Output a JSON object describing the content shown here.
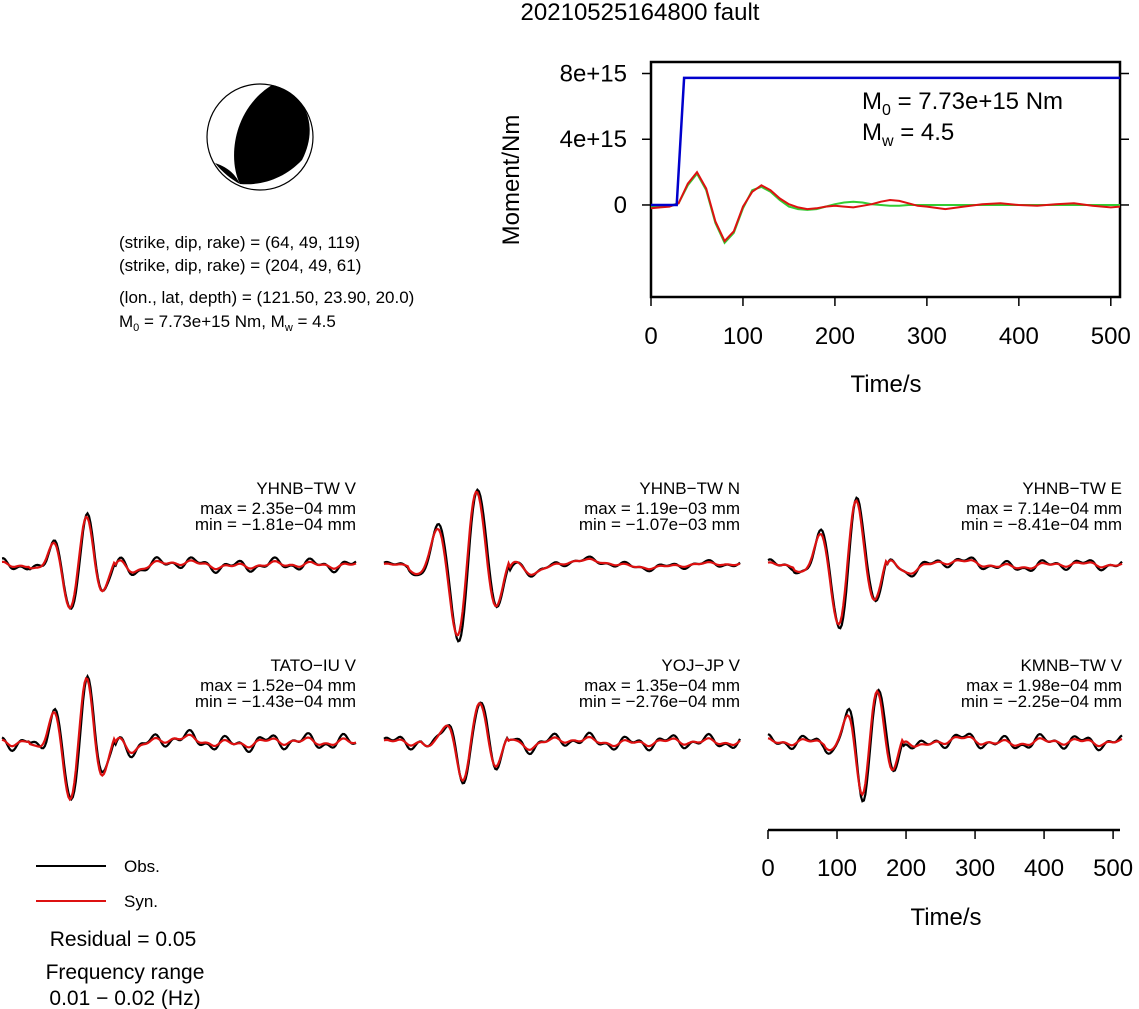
{
  "title": "20210525164800 fault",
  "focal_text": {
    "line1": "(strike, dip, rake) = (64, 49, 119)",
    "line2": "(strike, dip, rake) = (204, 49, 61)",
    "line3": "(lon., lat, depth) = (121.50, 23.90, 20.0)",
    "line4_m": "M",
    "line4_sub": "0",
    "line4_rest": " = 7.73e+15 Nm, M",
    "line4_sub2": "w",
    "line4_end": " = 4.5"
  },
  "moment_annotation": {
    "m0_prefix": "M",
    "m0_sub": "0",
    "m0_value": " = 7.73e+15 Nm",
    "mw_prefix": "M",
    "mw_sub": "w",
    "mw_value": " = 4.5"
  },
  "legend": {
    "obs_label": "Obs.",
    "syn_label": "Syn.",
    "residual": "Residual = 0.05",
    "freq_title": "Frequency range",
    "freq_range": "0.01 − 0.02 (Hz)"
  },
  "colors": {
    "moment": "#0000cc",
    "observed": "#000000",
    "synthetic": "#dd1111",
    "stf_green": "#33cc33",
    "stf_red": "#dd1111",
    "beachball_fill": "#000000"
  },
  "chart_data": [
    {
      "type": "line",
      "title": "",
      "xlabel": "Time/s",
      "ylabel": "Moment/Nm",
      "xlim": [
        0,
        510
      ],
      "ylim": [
        -5600000000000000.0,
        8700000000000000.0
      ],
      "xticks": [
        "0",
        "100",
        "200",
        "300",
        "400",
        "500"
      ],
      "yticks": [
        "0",
        "4e+15",
        "8e+15"
      ],
      "series": [
        {
          "name": "moment",
          "x": [
            0,
            28,
            36,
            510
          ],
          "y": [
            0,
            0,
            7730000000000000.0,
            7730000000000000.0
          ]
        },
        {
          "name": "stf_green",
          "x": [
            0,
            10,
            20,
            30,
            40,
            50,
            60,
            70,
            80,
            90,
            100,
            110,
            120,
            130,
            140,
            150,
            160,
            170,
            180,
            190,
            200,
            210,
            220,
            230,
            240,
            250,
            260,
            270,
            280,
            290,
            300,
            320,
            340,
            360,
            380,
            400,
            420,
            440,
            460,
            480,
            500,
            510
          ],
          "y": [
            -100000000000000.0,
            -100000000000000.0,
            -50000000000000.0,
            100000000000000.0,
            1200000000000000.0,
            1900000000000000.0,
            900000000000000.0,
            -1100000000000000.0,
            -2300000000000000.0,
            -1700000000000000.0,
            -200000000000000.0,
            900000000000000.0,
            1100000000000000.0,
            800000000000000.0,
            300000000000000.0,
            -100000000000000.0,
            -250000000000000.0,
            -300000000000000.0,
            -250000000000000.0,
            -100000000000000.0,
            50000000000000.0,
            150000000000000.0,
            200000000000000.0,
            150000000000000.0,
            50000000000000.0,
            0,
            -50000000000000.0,
            -50000000000000.0,
            0,
            0,
            0,
            0,
            0,
            0,
            0,
            0,
            0,
            0,
            0,
            0,
            0,
            0
          ]
        },
        {
          "name": "stf_red",
          "x": [
            0,
            10,
            20,
            30,
            40,
            50,
            60,
            70,
            80,
            90,
            100,
            110,
            120,
            130,
            140,
            150,
            160,
            170,
            180,
            190,
            200,
            210,
            220,
            230,
            240,
            250,
            260,
            270,
            280,
            290,
            300,
            320,
            340,
            360,
            380,
            400,
            420,
            440,
            460,
            480,
            500,
            510
          ],
          "y": [
            -200000000000000.0,
            -150000000000000.0,
            -100000000000000.0,
            100000000000000.0,
            1300000000000000.0,
            2000000000000000.0,
            1000000000000000.0,
            -1000000000000000.0,
            -2200000000000000.0,
            -1600000000000000.0,
            -100000000000000.0,
            800000000000000.0,
            1200000000000000.0,
            900000000000000.0,
            400000000000000.0,
            50000000000000.0,
            -150000000000000.0,
            -250000000000000.0,
            -200000000000000.0,
            -100000000000000.0,
            -50000000000000.0,
            -100000000000000.0,
            -150000000000000.0,
            -50000000000000.0,
            50000000000000.0,
            200000000000000.0,
            300000000000000.0,
            250000000000000.0,
            100000000000000.0,
            -50000000000000.0,
            -100000000000000.0,
            -250000000000000.0,
            -100000000000000.0,
            50000000000000.0,
            100000000000000.0,
            0,
            -50000000000000.0,
            50000000000000.0,
            100000000000000.0,
            -50000000000000.0,
            -150000000000000.0,
            -100000000000000.0
          ]
        }
      ]
    },
    {
      "type": "line",
      "title": "",
      "xlabel": "Time/s",
      "xlim": [
        0,
        510
      ],
      "xticks": [
        "0",
        "100",
        "200",
        "300",
        "400",
        "500"
      ],
      "panels": [
        {
          "station": "YHNB−TW V",
          "max": "max = 2.35e−04 mm",
          "min": "min = −1.81e−04 mm"
        },
        {
          "station": "YHNB−TW N",
          "max": "max = 1.19e−03 mm",
          "min": "min = −1.07e−03 mm"
        },
        {
          "station": "YHNB−TW E",
          "max": "max = 7.14e−04 mm",
          "min": "min = −8.41e−04 mm"
        },
        {
          "station": "TATO−IU V",
          "max": "max = 1.52e−04 mm",
          "min": "min = −1.43e−04 mm"
        },
        {
          "station": "YOJ−JP V",
          "max": "max = 1.35e−04 mm",
          "min": "min = −2.76e−04 mm"
        },
        {
          "station": "KMNB−TW V",
          "max": "max = 1.98e−04 mm",
          "min": "min = −2.25e−04 mm"
        }
      ]
    }
  ]
}
